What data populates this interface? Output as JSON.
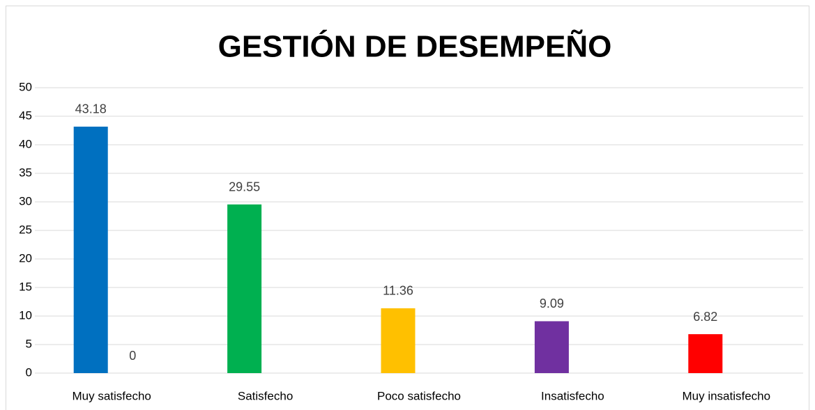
{
  "chart_data": {
    "type": "bar",
    "title": "GESTIÓN DE DESEMPEÑO",
    "categories": [
      "Muy satisfecho",
      "Satisfecho",
      "Poco satisfecho",
      "Insatisfecho",
      "Muy insatisfecho"
    ],
    "series": [
      {
        "colors": [
          "#0070c0",
          "#00b050",
          "#ffc000",
          "#7030a0",
          "#ff0000"
        ],
        "values": [
          43.18,
          29.55,
          11.36,
          9.09,
          6.82
        ]
      },
      {
        "colors": [
          "#a5a5a5",
          "#a5a5a5",
          "#a5a5a5",
          "#a5a5a5",
          "#a5a5a5"
        ],
        "values": [
          0,
          null,
          null,
          null,
          null
        ]
      }
    ],
    "ylim": [
      0,
      50
    ],
    "yticks": [
      0,
      5,
      10,
      15,
      20,
      25,
      30,
      35,
      40,
      45,
      50
    ],
    "grid": true,
    "data_labels": true
  }
}
